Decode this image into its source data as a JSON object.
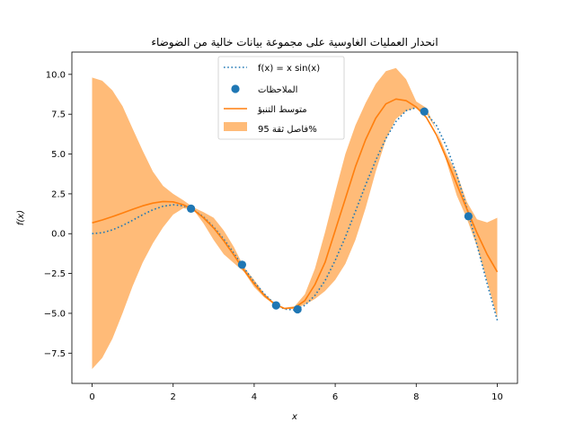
{
  "chart_data": {
    "type": "line",
    "title": "انحدار العمليات الغاوسية على مجموعة بيانات خالية من الضوضاء",
    "xlabel": "x",
    "ylabel": "f(x)",
    "xlim": [
      -0.5,
      10.5
    ],
    "ylim": [
      -9.4,
      11.4
    ],
    "xticks": [
      0,
      2,
      4,
      6,
      8,
      10
    ],
    "xtick_labels": [
      "0",
      "2",
      "4",
      "6",
      "8",
      "10"
    ],
    "yticks": [
      -7.5,
      -5.0,
      -2.5,
      0.0,
      2.5,
      5.0,
      7.5,
      10.0
    ],
    "ytick_labels": [
      "−7.5",
      "−5.0",
      "−2.5",
      "0.0",
      "2.5",
      "5.0",
      "7.5",
      "10.0"
    ],
    "grid": false,
    "legend_position": "top-center",
    "series": [
      {
        "name": "f(x) = x sin(x)",
        "kind": "dotted-line",
        "color": "#1f77b4",
        "x": [
          0,
          0.25,
          0.5,
          0.75,
          1,
          1.25,
          1.5,
          1.75,
          2,
          2.25,
          2.5,
          2.75,
          3,
          3.25,
          3.5,
          3.75,
          4,
          4.25,
          4.5,
          4.75,
          5,
          5.25,
          5.5,
          5.75,
          6,
          6.25,
          6.5,
          6.75,
          7,
          7.25,
          7.5,
          7.75,
          8,
          8.25,
          8.5,
          8.75,
          9,
          9.25,
          9.5,
          9.75,
          10
        ],
        "y": [
          0,
          0.06,
          0.24,
          0.51,
          0.84,
          1.19,
          1.5,
          1.72,
          1.82,
          1.75,
          1.5,
          1.05,
          0.42,
          -0.35,
          -1.23,
          -2.15,
          -3.03,
          -3.78,
          -4.4,
          -4.74,
          -4.79,
          -4.5,
          -3.88,
          -2.95,
          -1.68,
          -0.21,
          1.4,
          3.05,
          4.6,
          5.97,
          7.04,
          7.72,
          7.91,
          7.55,
          6.79,
          5.46,
          3.71,
          1.62,
          -0.71,
          -3.13,
          -5.44
        ]
      },
      {
        "name": "الملاحظات",
        "kind": "scatter",
        "color": "#1f77b4",
        "x": [
          2.44,
          3.7,
          4.54,
          5.07,
          8.2,
          9.29
        ],
        "y": [
          1.57,
          -1.95,
          -4.5,
          -4.75,
          7.67,
          1.09
        ]
      },
      {
        "name": "متوسط التنبؤ",
        "kind": "line",
        "color": "#ff7f0e",
        "x": [
          0,
          0.25,
          0.5,
          0.75,
          1,
          1.25,
          1.5,
          1.75,
          2,
          2.25,
          2.5,
          2.75,
          3,
          3.25,
          3.5,
          3.75,
          4,
          4.25,
          4.5,
          4.75,
          5,
          5.25,
          5.5,
          5.75,
          6,
          6.25,
          6.5,
          6.75,
          7,
          7.25,
          7.5,
          7.75,
          8,
          8.25,
          8.5,
          8.75,
          9,
          9.25,
          9.5,
          9.75,
          10
        ],
        "y": [
          0.68,
          0.86,
          1.07,
          1.3,
          1.53,
          1.75,
          1.92,
          2.02,
          2.0,
          1.82,
          1.5,
          1.0,
          0.36,
          -0.45,
          -1.35,
          -2.3,
          -3.15,
          -3.88,
          -4.42,
          -4.7,
          -4.65,
          -4.2,
          -3.2,
          -1.8,
          0.2,
          2.2,
          4.2,
          5.9,
          7.25,
          8.15,
          8.45,
          8.35,
          7.95,
          7.3,
          6.2,
          4.7,
          3.1,
          1.55,
          0.05,
          -1.3,
          -2.4
        ]
      }
    ],
    "confidence_interval": {
      "name": "فاصل ثقة 95%",
      "color": "#ffbb78",
      "x": [
        0,
        0.25,
        0.5,
        0.75,
        1,
        1.25,
        1.5,
        1.75,
        2,
        2.25,
        2.5,
        2.75,
        3,
        3.25,
        3.5,
        3.75,
        4,
        4.25,
        4.5,
        4.75,
        5,
        5.25,
        5.5,
        5.75,
        6,
        6.25,
        6.5,
        6.75,
        7,
        7.25,
        7.5,
        7.75,
        8,
        8.25,
        8.5,
        8.75,
        9,
        9.25,
        9.5,
        9.75,
        10
      ],
      "lower": [
        -8.5,
        -7.8,
        -6.6,
        -5.0,
        -3.3,
        -1.8,
        -0.6,
        0.4,
        1.2,
        1.6,
        1.5,
        0.65,
        -0.4,
        -1.3,
        -1.85,
        -2.4,
        -3.35,
        -4.0,
        -4.45,
        -4.72,
        -4.7,
        -4.45,
        -4.1,
        -3.6,
        -2.9,
        -1.9,
        -0.4,
        1.6,
        3.9,
        5.9,
        7.2,
        7.7,
        7.9,
        7.55,
        6.5,
        4.5,
        2.4,
        0.95,
        -0.8,
        -3.0,
        -5.3
      ],
      "upper": [
        9.8,
        9.6,
        9.0,
        8.0,
        6.6,
        5.2,
        3.9,
        3.0,
        2.5,
        2.1,
        1.65,
        1.35,
        1.0,
        0.2,
        -0.85,
        -2.1,
        -2.9,
        -3.75,
        -4.35,
        -4.65,
        -4.55,
        -3.8,
        -2.2,
        0.1,
        2.6,
        5.0,
        6.8,
        8.2,
        9.4,
        10.2,
        10.4,
        9.7,
        8.3,
        7.9,
        6.5,
        5.0,
        3.8,
        2.0,
        0.9,
        0.7,
        1.0
      ]
    }
  }
}
